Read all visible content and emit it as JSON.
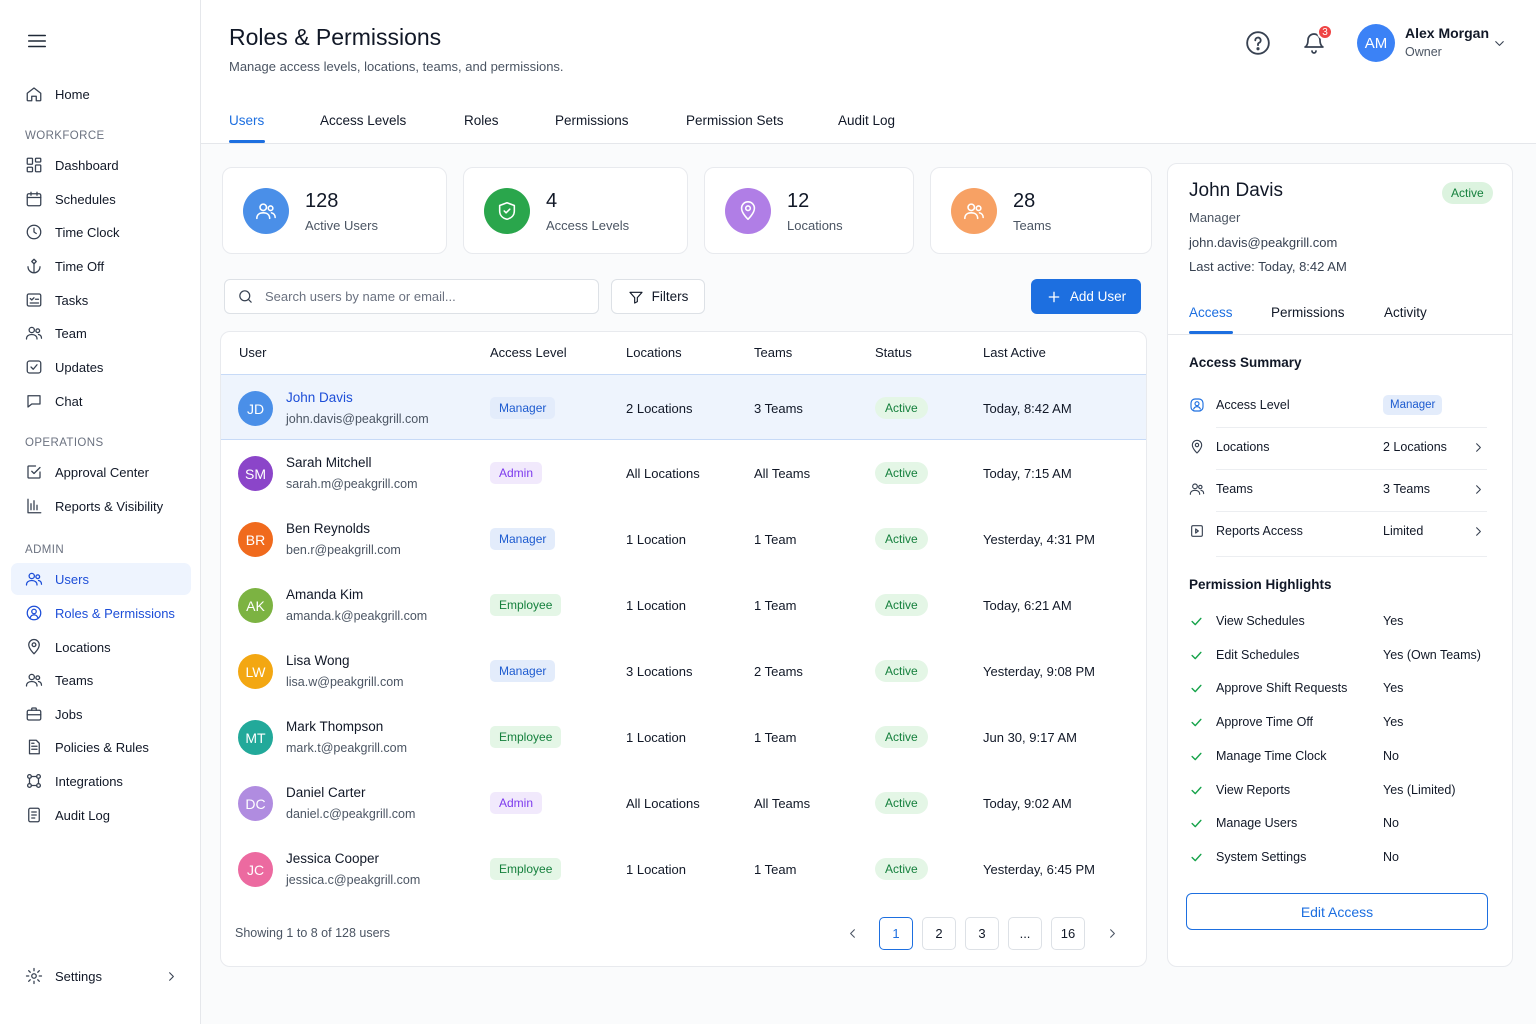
{
  "sidebar": {
    "items": [
      {
        "label": "Home",
        "icon": "home-icon"
      },
      {
        "label": "Dashboard",
        "icon": "dashboard-icon"
      },
      {
        "label": "Schedules",
        "icon": "calendar-icon"
      },
      {
        "label": "Time Clock",
        "icon": "clock-icon"
      },
      {
        "label": "Time Off",
        "icon": "time-off-icon"
      },
      {
        "label": "Tasks",
        "icon": "tasks-icon"
      },
      {
        "label": "Team",
        "icon": "team-icon"
      },
      {
        "label": "Updates",
        "icon": "updates-icon"
      },
      {
        "label": "Chat",
        "icon": "chat-icon"
      },
      {
        "label": "Approval Center",
        "icon": "approval-icon"
      },
      {
        "label": "Reports & Visibility",
        "icon": "reports-icon"
      },
      {
        "label": "Users",
        "icon": "users-icon"
      },
      {
        "label": "Roles & Permissions",
        "icon": "roles-icon"
      },
      {
        "label": "Locations",
        "icon": "location-icon"
      },
      {
        "label": "Teams",
        "icon": "teams-icon"
      },
      {
        "label": "Jobs",
        "icon": "briefcase-icon"
      },
      {
        "label": "Policies & Rules",
        "icon": "policy-icon"
      },
      {
        "label": "Integrations",
        "icon": "integrations-icon"
      },
      {
        "label": "Audit Log",
        "icon": "audit-icon"
      },
      {
        "label": "Settings",
        "icon": "gear-icon"
      }
    ],
    "sections": {
      "workforce": "WORKFORCE",
      "operations": "OPERATIONS",
      "admin": "ADMIN"
    }
  },
  "header": {
    "title": "Roles & Permissions",
    "subtitle": "Manage access levels, locations, teams, and permissions.",
    "notification_count": "3",
    "user": {
      "initials": "AM",
      "name": "Alex Morgan",
      "role": "Owner"
    }
  },
  "tabs": [
    "Users",
    "Access Levels",
    "Roles",
    "Permissions",
    "Permission Sets",
    "Audit Log"
  ],
  "stats": [
    {
      "value": "128",
      "label": "Active Users",
      "color": "#3b82f6"
    },
    {
      "value": "4",
      "label": "Access Levels",
      "color": "#22a04a"
    },
    {
      "value": "12",
      "label": "Locations",
      "color": "#a66ee0"
    },
    {
      "value": "28",
      "label": "Teams",
      "color": "#f59b5a"
    }
  ],
  "toolbar": {
    "search_placeholder": "Search users by name or email...",
    "filters_label": "Filters",
    "add_user_label": "Add User"
  },
  "table": {
    "headers": [
      "User",
      "Access Level",
      "Locations",
      "Teams",
      "Status",
      "Last Active"
    ],
    "rows": [
      {
        "initials": "JD",
        "color": "#4a8fe8",
        "name": "John Davis",
        "email": "john.davis@peakgrill.com",
        "level": "Manager",
        "locations": "2 Locations",
        "teams": "3 Teams",
        "status": "Active",
        "last": "Today, 8:42 AM"
      },
      {
        "initials": "SM",
        "color": "#8b45c9",
        "name": "Sarah Mitchell",
        "email": "sarah.m@peakgrill.com",
        "level": "Admin",
        "locations": "All Locations",
        "teams": "All Teams",
        "status": "Active",
        "last": "Today, 7:15 AM"
      },
      {
        "initials": "BR",
        "color": "#f06a1d",
        "name": "Ben Reynolds",
        "email": "ben.r@peakgrill.com",
        "level": "Manager",
        "locations": "1 Location",
        "teams": "1 Team",
        "status": "Active",
        "last": "Yesterday, 4:31 PM"
      },
      {
        "initials": "AK",
        "color": "#7cb342",
        "name": "Amanda Kim",
        "email": "amanda.k@peakgrill.com",
        "level": "Employee",
        "locations": "1 Location",
        "teams": "1 Team",
        "status": "Active",
        "last": "Today, 6:21 AM"
      },
      {
        "initials": "LW",
        "color": "#f3a712",
        "name": "Lisa Wong",
        "email": "lisa.w@peakgrill.com",
        "level": "Manager",
        "locations": "3 Locations",
        "teams": "2 Teams",
        "status": "Active",
        "last": "Yesterday, 9:08 PM"
      },
      {
        "initials": "MT",
        "color": "#22a99a",
        "name": "Mark Thompson",
        "email": "mark.t@peakgrill.com",
        "level": "Employee",
        "locations": "1 Location",
        "teams": "1 Team",
        "status": "Active",
        "last": "Jun 30, 9:17 AM"
      },
      {
        "initials": "DC",
        "color": "#b08ce0",
        "name": "Daniel Carter",
        "email": "daniel.c@peakgrill.com",
        "level": "Admin",
        "locations": "All Locations",
        "teams": "All Teams",
        "status": "Active",
        "last": "Today, 9:02 AM"
      },
      {
        "initials": "JC",
        "color": "#ec6aa0",
        "name": "Jessica Cooper",
        "email": "jessica.c@peakgrill.com",
        "level": "Employee",
        "locations": "1 Location",
        "teams": "1 Team",
        "status": "Active",
        "last": "Yesterday, 6:45 PM"
      }
    ],
    "showing": "Showing 1 to 8 of 128 users",
    "pages": [
      "1",
      "2",
      "3",
      "...",
      "16"
    ]
  },
  "detail": {
    "name": "John Davis",
    "status": "Active",
    "role": "Manager",
    "email": "john.davis@peakgrill.com",
    "last_active": "Last active: Today, 8:42 AM",
    "tabs": [
      "Access",
      "Permissions",
      "Activity"
    ],
    "summary_title": "Access Summary",
    "summary": [
      {
        "label": "Access Level",
        "value": "Manager",
        "icon": "user-badge-icon"
      },
      {
        "label": "Locations",
        "value": "2 Locations",
        "icon": "location-icon"
      },
      {
        "label": "Teams",
        "value": "3 Teams",
        "icon": "teams-icon"
      },
      {
        "label": "Reports Access",
        "value": "Limited",
        "icon": "reports-access-icon"
      }
    ],
    "highlights_title": "Permission Highlights",
    "permissions": [
      {
        "label": "View Schedules",
        "value": "Yes"
      },
      {
        "label": "Edit Schedules",
        "value": "Yes (Own Teams)"
      },
      {
        "label": "Approve Shift Requests",
        "value": "Yes"
      },
      {
        "label": "Approve Time Off",
        "value": "Yes"
      },
      {
        "label": "Manage Time Clock",
        "value": "No"
      },
      {
        "label": "View Reports",
        "value": "Yes (Limited)"
      },
      {
        "label": "Manage Users",
        "value": "No"
      },
      {
        "label": "System Settings",
        "value": "No"
      }
    ],
    "edit_label": "Edit Access"
  }
}
